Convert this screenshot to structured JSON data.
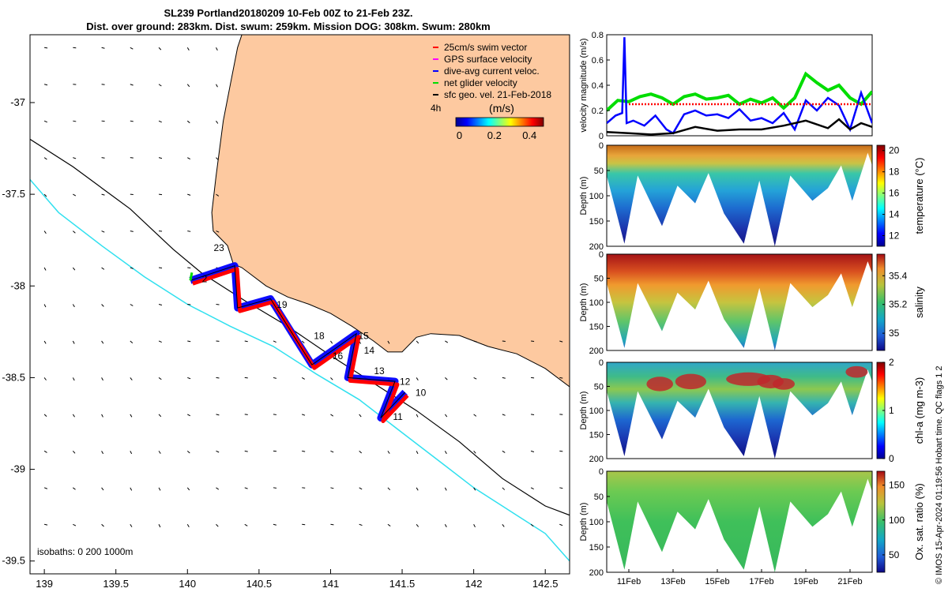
{
  "title": {
    "line1": "SL239 Portland20180209 10-Feb 00Z to 21-Feb 23Z.",
    "line2": "Dist. over ground: 283km. Dist. swum: 259km. Mission DOG: 308km. Swum: 280km"
  },
  "footer_stamp": "© IMOS 15-Apr-2024 01:19:56 Hobart time. QC flags 1  2",
  "colors": {
    "land": "#fdc9a0",
    "isobath_deep": "#30e0ef",
    "isobath_mid": "#000000",
    "swim": "#ff0000",
    "gps": "#ff00ff",
    "current": "#0000ff",
    "net": "#00dd00",
    "geo": "#000000"
  },
  "chart_data": [
    {
      "type": "map",
      "x_ticks": [
        "139",
        "139.5",
        "140",
        "140.5",
        "141",
        "141.5",
        "142",
        "142.5"
      ],
      "x_tick_values": [
        139,
        139.5,
        140,
        140.5,
        141,
        141.5,
        142,
        142.5
      ],
      "y_ticks": [
        "-37",
        "-37.5",
        "-38",
        "-38.5",
        "-39",
        "-39.5"
      ],
      "y_tick_values": [
        -37,
        -37.5,
        -38,
        -38.5,
        -39,
        -39.5
      ],
      "xlim": [
        138.9,
        142.67
      ],
      "ylim": [
        -39.57,
        -36.63
      ],
      "legend": [
        {
          "label": "25cm/s swim vector",
          "color": "#ff0000"
        },
        {
          "label": "GPS surface velocity",
          "color": "#ff00ff"
        },
        {
          "label": "dive-avg current veloc.",
          "color": "#0000ff"
        },
        {
          "label": "net glider velocity",
          "color": "#00dd00"
        },
        {
          "label": "sfc geo. vel. 21-Feb-2018",
          "color": "#000000"
        }
      ],
      "colorbar": {
        "label": "(m/s)",
        "ticks": [
          "0",
          "0.2",
          "0.4"
        ],
        "tick_values": [
          0,
          0.2,
          0.4
        ],
        "range": [
          -0.02,
          0.48
        ],
        "side_label": "4h"
      },
      "isobath_label": "isobaths: 0   200  1000m",
      "track": [
        [
          140.02,
          -37.97
        ],
        [
          140.33,
          -37.89
        ],
        [
          140.35,
          -38.12
        ],
        [
          140.58,
          -38.07
        ],
        [
          140.87,
          -38.43
        ],
        [
          141.18,
          -38.26
        ],
        [
          141.12,
          -38.5
        ],
        [
          141.45,
          -38.52
        ],
        [
          141.35,
          -38.72
        ],
        [
          141.52,
          -38.58
        ]
      ],
      "day_labels": [
        {
          "text": "23",
          "lon": 140.22,
          "lat": -37.81
        },
        {
          "text": "2",
          "lon": 140.12,
          "lat": -37.98
        },
        {
          "text": "19",
          "lon": 140.66,
          "lat": -38.12
        },
        {
          "text": "18",
          "lon": 140.92,
          "lat": -38.29
        },
        {
          "text": "16",
          "lon": 141.05,
          "lat": -38.4
        },
        {
          "text": "15",
          "lon": 141.23,
          "lat": -38.29
        },
        {
          "text": "14",
          "lon": 141.27,
          "lat": -38.37
        },
        {
          "text": "13",
          "lon": 141.34,
          "lat": -38.48
        },
        {
          "text": "12",
          "lon": 141.52,
          "lat": -38.54
        },
        {
          "text": "10",
          "lon": 141.63,
          "lat": -38.6
        },
        {
          "text": "11",
          "lon": 141.47,
          "lat": -38.73
        }
      ]
    },
    {
      "type": "line",
      "ylabel": "velocity magnitude (m/s)",
      "ylim": [
        0,
        0.8
      ],
      "y_ticks": [
        "0",
        "0.2",
        "0.4",
        "0.6",
        "0.8"
      ],
      "y_tick_values": [
        0,
        0.2,
        0.4,
        0.6,
        0.8
      ],
      "xlim": [
        10.0,
        22.0
      ],
      "series": [
        {
          "color": "#00dd00",
          "x": [
            10.0,
            10.5,
            11.0,
            11.5,
            12.0,
            12.5,
            13.0,
            13.5,
            14.0,
            14.5,
            15.0,
            15.5,
            16.0,
            16.5,
            17.0,
            17.5,
            18.0,
            18.5,
            19.0,
            19.5,
            20.0,
            20.5,
            21.0,
            21.5,
            22.0
          ],
          "y": [
            0.2,
            0.28,
            0.27,
            0.31,
            0.33,
            0.3,
            0.25,
            0.31,
            0.33,
            0.29,
            0.3,
            0.32,
            0.25,
            0.29,
            0.26,
            0.3,
            0.22,
            0.3,
            0.49,
            0.42,
            0.36,
            0.4,
            0.3,
            0.25,
            0.35
          ]
        },
        {
          "color": "#0000ff",
          "x": [
            10.0,
            10.4,
            10.7,
            10.8,
            10.9,
            11.2,
            11.7,
            12.2,
            12.7,
            13.0,
            13.5,
            14.0,
            14.5,
            15.0,
            15.5,
            16.0,
            16.5,
            17.0,
            17.5,
            18.0,
            18.5,
            19.0,
            19.5,
            20.0,
            20.5,
            21.0,
            21.5,
            22.0
          ],
          "y": [
            0.1,
            0.16,
            0.18,
            0.78,
            0.1,
            0.12,
            0.08,
            0.16,
            0.05,
            0.02,
            0.17,
            0.2,
            0.16,
            0.17,
            0.14,
            0.21,
            0.12,
            0.14,
            0.1,
            0.18,
            0.05,
            0.28,
            0.2,
            0.3,
            0.24,
            0.05,
            0.34,
            0.1
          ]
        },
        {
          "color": "#000000",
          "x": [
            10.0,
            11.0,
            12.0,
            13.0,
            14.0,
            15.0,
            16.0,
            17.0,
            18.0,
            19.0,
            20.0,
            20.5,
            21.0,
            21.5,
            22.0
          ],
          "y": [
            0.03,
            0.02,
            0.01,
            0.02,
            0.07,
            0.04,
            0.05,
            0.05,
            0.08,
            0.12,
            0.06,
            0.13,
            0.05,
            0.1,
            0.07
          ]
        },
        {
          "color": "#ff0000",
          "dashed": true,
          "x": [
            11.0,
            22.0
          ],
          "y": [
            0.25,
            0.25
          ]
        }
      ]
    },
    {
      "type": "heatmap",
      "ylabel": "Depth (m)",
      "ylim": [
        200,
        0
      ],
      "xlim": [
        10.0,
        22.0
      ],
      "y_ticks": [
        "0",
        "50",
        "100",
        "150",
        "200"
      ],
      "y_tick_values": [
        0,
        50,
        100,
        150,
        200
      ],
      "dive_depth_x": [
        10.0,
        10.8,
        11.4,
        12.5,
        13.2,
        14.0,
        14.6,
        15.3,
        16.2,
        16.9,
        17.6,
        18.3,
        19.3,
        20.0,
        20.6,
        21.1,
        21.8,
        22.0
      ],
      "dive_depth_y": [
        60,
        195,
        60,
        160,
        80,
        115,
        55,
        135,
        195,
        70,
        200,
        60,
        110,
        85,
        40,
        110,
        15,
        40
      ],
      "panels": [
        {
          "quantity": "temperature",
          "colorbar_label": "temperature (°C)",
          "colorbar_ticks": [
            "12",
            "14",
            "16",
            "18",
            "20"
          ],
          "colorbar_tick_values": [
            12,
            14,
            16,
            18,
            20
          ],
          "colorbar_range": [
            11,
            20.5
          ]
        },
        {
          "quantity": "salinity",
          "colorbar_label": "salinity",
          "colorbar_ticks": [
            "35",
            "35.2",
            "35.4"
          ],
          "colorbar_tick_values": [
            35,
            35.2,
            35.4
          ],
          "colorbar_range": [
            34.88,
            35.55
          ]
        },
        {
          "quantity": "chl-a",
          "colorbar_label": "chl-a (mg m-3)",
          "colorbar_ticks": [
            "0",
            "1",
            "2"
          ],
          "colorbar_tick_values": [
            0,
            1,
            2
          ],
          "colorbar_range": [
            0,
            2
          ]
        },
        {
          "quantity": "oxygen saturation",
          "colorbar_label": "Ox. sat. ratio (%)",
          "colorbar_ticks": [
            "50",
            "100",
            "150"
          ],
          "colorbar_tick_values": [
            50,
            100,
            150
          ],
          "colorbar_range": [
            25,
            170
          ],
          "x_ticks": [
            "11Feb",
            "13Feb",
            "15Feb",
            "17Feb",
            "19Feb",
            "21Feb"
          ],
          "x_tick_values": [
            11,
            13,
            15,
            17,
            19,
            21
          ]
        }
      ]
    }
  ]
}
